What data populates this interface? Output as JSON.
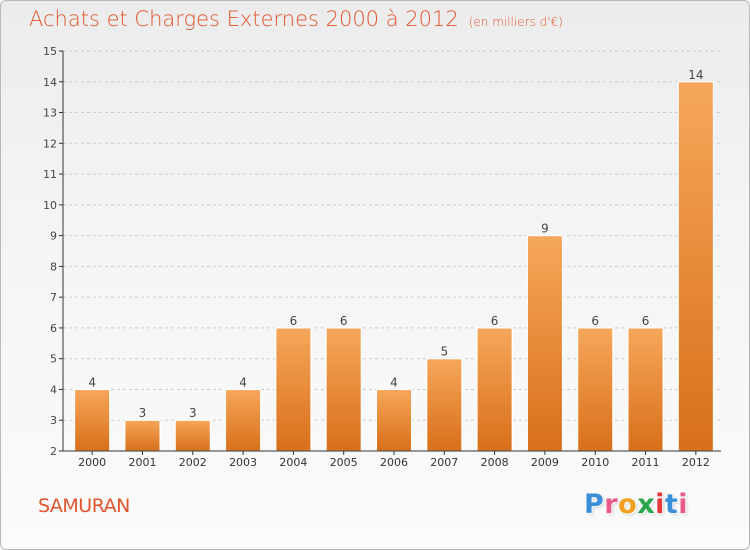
{
  "title": "Achats et Charges Externes 2000 à 2012",
  "unit": "(en milliers d'€)",
  "commune": "SAMURAN",
  "logo": {
    "letters": [
      "P",
      "r",
      "o",
      "x",
      "i",
      "t",
      "i"
    ],
    "colors": [
      "#3a8fd8",
      "#e85a8a",
      "#f0a020",
      "#2aa64a",
      "#e83838",
      "#3a8fd8",
      "#e85a8a"
    ]
  },
  "colors": {
    "title": "#e0552d",
    "bar_top": "#f6a75a",
    "bar_bottom": "#d86f1a",
    "grid": "#cccccc",
    "axis": "#333333"
  },
  "chart_data": {
    "type": "bar",
    "categories": [
      "2000",
      "2001",
      "2002",
      "2003",
      "2004",
      "2005",
      "2006",
      "2007",
      "2008",
      "2009",
      "2010",
      "2011",
      "2012"
    ],
    "values": [
      4,
      3,
      3,
      4,
      6,
      6,
      4,
      5,
      6,
      9,
      6,
      6,
      14
    ],
    "ylim": [
      2,
      15
    ],
    "yticks": [
      2,
      3,
      4,
      5,
      6,
      7,
      8,
      9,
      10,
      11,
      12,
      13,
      14,
      15
    ],
    "grid": true,
    "data_labels": true
  }
}
